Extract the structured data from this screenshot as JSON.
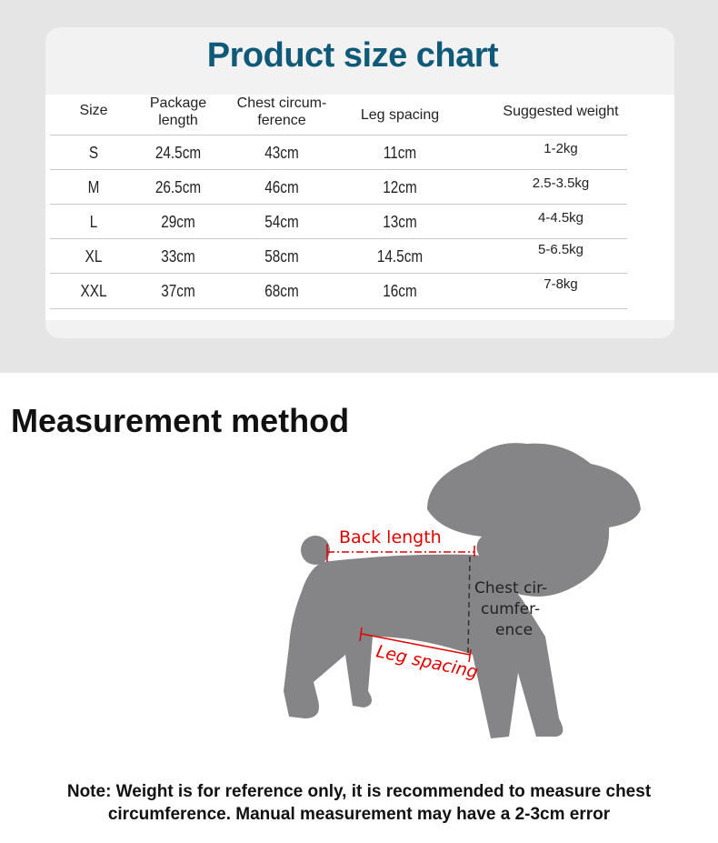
{
  "title": "Product size chart",
  "table": {
    "headers": [
      "Size",
      "Package\nlength",
      "Chest circum-\nference",
      "Leg spacing",
      "Suggested weight"
    ],
    "rows": [
      [
        "S",
        "24.5cm",
        "43cm",
        "11cm",
        "1-2kg"
      ],
      [
        "M",
        "26.5cm",
        "46cm",
        "12cm",
        "2.5-3.5kg"
      ],
      [
        "L",
        "29cm",
        "54cm",
        "13cm",
        "4-4.5kg"
      ],
      [
        "XL",
        "33cm",
        "58cm",
        "14.5cm",
        "5-6.5kg"
      ],
      [
        "XXL",
        "37cm",
        "68cm",
        "16cm",
        "7-8kg"
      ]
    ]
  },
  "method": {
    "heading": "Measurement method",
    "labels": {
      "back": "Back length",
      "chest_1": "Chest cir-",
      "chest_2": "cumfer-",
      "chest_3": "ence",
      "leg": "Leg spacing"
    }
  },
  "note": {
    "line1": "Note: Weight is for reference only, it is recommended to measure chest",
    "line2": "circumference. Manual measurement may have a 2-3cm error"
  },
  "colors": {
    "title": "#0f5a78",
    "measure_lines": "#e00000",
    "dog": "#858587"
  }
}
